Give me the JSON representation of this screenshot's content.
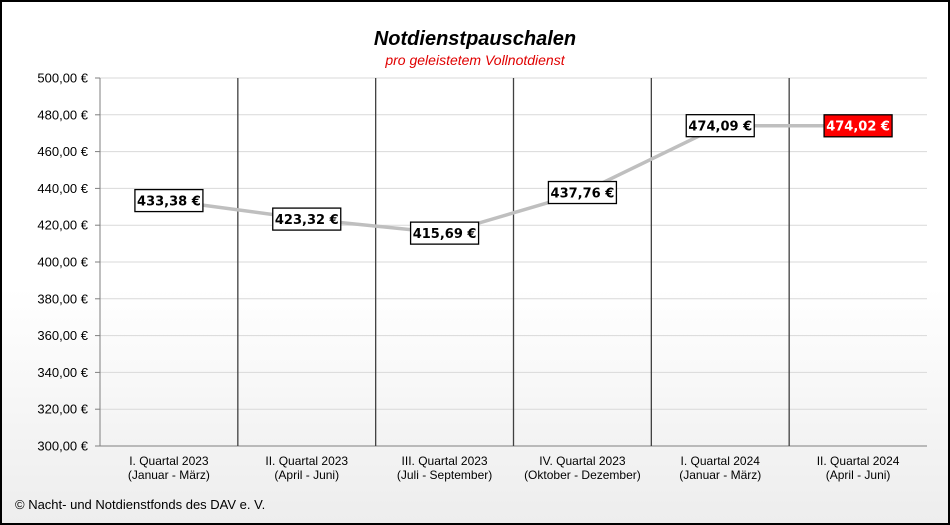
{
  "chart_data": {
    "type": "line",
    "title": "Notdienstpauschalen",
    "subtitle": "pro geleistetem Vollnotdienst",
    "categories": [
      [
        "I. Quartal 2023",
        "(Januar - März)"
      ],
      [
        "II. Quartal 2023",
        "(April - Juni)"
      ],
      [
        "III. Quartal 2023",
        "(Juli - September)"
      ],
      [
        "IV. Quartal 2023",
        "(Oktober - Dezember)"
      ],
      [
        "I. Quartal 2024",
        "(Januar - März)"
      ],
      [
        "II. Quartal 2024",
        "(April - Juni)"
      ]
    ],
    "series": [
      {
        "values": [
          433.38,
          423.32,
          415.69,
          437.76,
          474.09,
          474.02
        ]
      }
    ],
    "data_labels": [
      "433,38 €",
      "423,32 €",
      "415,69 €",
      "437,76 €",
      "474,09 €",
      "474,02 €"
    ],
    "highlighted_index": 5,
    "y_tick_labels": [
      "300,00 €",
      "320,00 €",
      "340,00 €",
      "360,00 €",
      "380,00 €",
      "400,00 €",
      "420,00 €",
      "440,00 €",
      "460,00 €",
      "480,00 €",
      "500,00 €"
    ],
    "ylim": [
      300,
      500
    ],
    "ystep": 20,
    "grid": true,
    "colors": {
      "line": "#bfbfbf",
      "highlight": "#ff0000",
      "separator": "#404040",
      "grid": "#d9d9d9"
    }
  },
  "footer": "© Nacht- und Notdienstfonds  des DAV e. V."
}
